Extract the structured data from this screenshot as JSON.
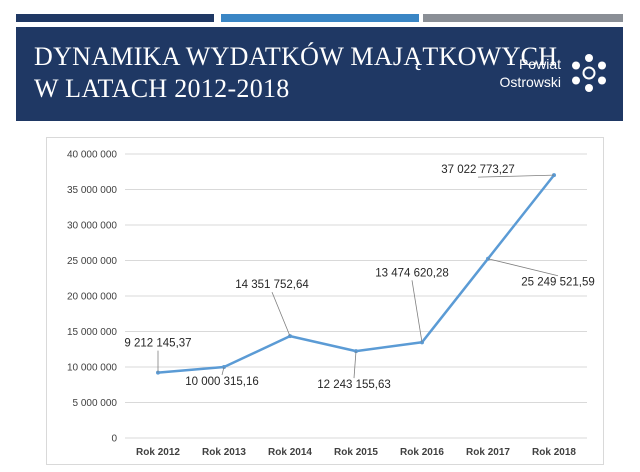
{
  "header": {
    "title_line1": "DYNAMIKA WYDATKÓW MAJĄTKOWYCH",
    "title_line2": "W LATACH 2012-2018",
    "logo_line1": "Powiat",
    "logo_line2": "Ostrowski",
    "logo_icon": "flower-dots-icon",
    "bar_colors": [
      "#1f3864",
      "#3a86c5",
      "#8a8f96"
    ],
    "banner_color": "#1f3864"
  },
  "chart_data": {
    "type": "line",
    "categories": [
      "Rok 2012",
      "Rok 2013",
      "Rok 2014",
      "Rok 2015",
      "Rok 2016",
      "Rok 2017",
      "Rok 2018"
    ],
    "series": [
      {
        "values": [
          9212145.37,
          10000315.16,
          14351752.64,
          12243155.63,
          13474620.28,
          25249521.59,
          37022773.27
        ],
        "labels": [
          "9 212 145,37",
          "10 000 315,16",
          "14 351 752,64",
          "12 243 155,63",
          "13 474 620,28",
          "25 249 521,59",
          "37 022 773,27"
        ],
        "color": "#5b9bd5"
      }
    ],
    "yticks": [
      "0",
      "5 000 000",
      "10 000 000",
      "15 000 000",
      "20 000 000",
      "25 000 000",
      "30 000 000",
      "35 000 000",
      "40 000 000"
    ],
    "ylim": [
      0,
      40000000
    ],
    "grid": true,
    "legend": "none"
  }
}
